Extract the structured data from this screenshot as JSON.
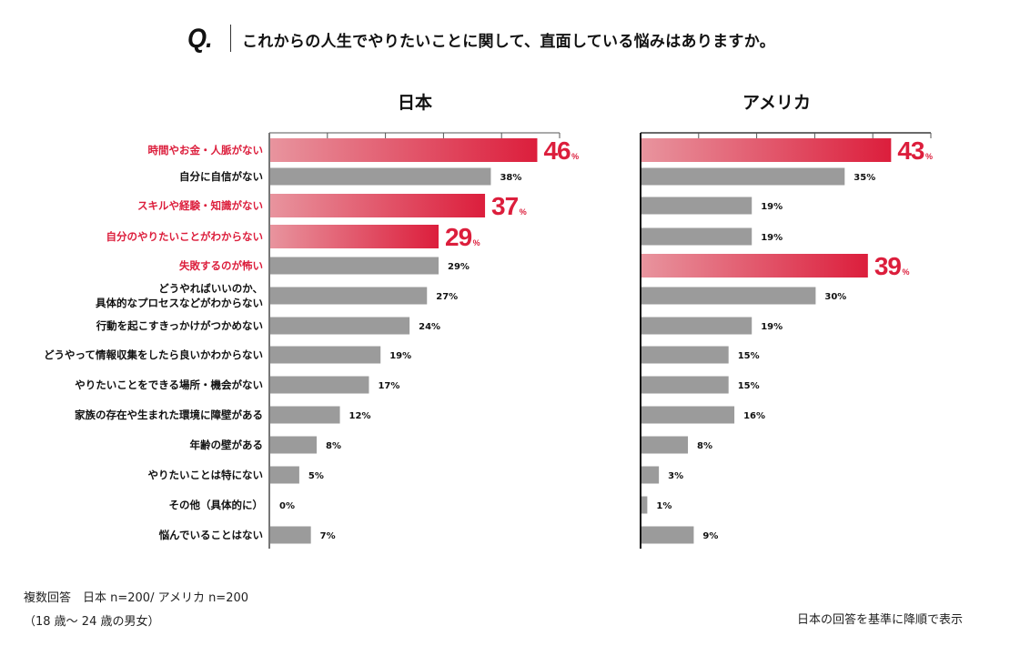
{
  "question": {
    "mark": "Q.",
    "text": "これからの人生でやりたいことに関して、直面している悩みはありますか。"
  },
  "colors": {
    "highlight_start": "#e8949e",
    "highlight_end": "#dc1e3c",
    "highlight_text": "#dc1e3c",
    "bar_gray": "#9b9b9b",
    "japan_axis": "#777777",
    "usa_axis": "#111111"
  },
  "footnotes": {
    "line1": "複数回答　日本 n=200/ アメリカ n=200",
    "line2": "（18 歳〜 24 歳の男女）",
    "sort_note": "日本の回答を基準に降順で表示"
  },
  "chart_data": {
    "type": "bar",
    "orientation": "horizontal",
    "title": "これからの人生でやりたいことに関して、直面している悩みはありますか。",
    "unit": "%",
    "xlim": [
      0,
      50
    ],
    "grid": false,
    "categories": [
      "時間やお金・人脈がない",
      "自分に自信がない",
      "スキルや経験・知識がない",
      "自分のやりたいことがわからない",
      "失敗するのが怖い",
      "どうやればいいのか、\n具体的なプロセスなどがわからない",
      "行動を起こすきっかけがつかめない",
      "どうやって情報収集をしたら良いかわからない",
      "やりたいことをできる場所・機会がない",
      "家族の存在や生まれた環境に障壁がある",
      "年齢の壁がある",
      "やりたいことは特にない",
      "その他（具体的に）",
      "悩んでいることはない"
    ],
    "highlighted_categories_japan": [
      0,
      2,
      3
    ],
    "highlighted_label_categories": [
      0,
      2,
      3,
      4
    ],
    "series": [
      {
        "name": "日本",
        "values": [
          46,
          38,
          37,
          29,
          29,
          27,
          24,
          19,
          17,
          12,
          8,
          5,
          0,
          7
        ],
        "highlight": [
          true,
          false,
          true,
          true,
          false,
          false,
          false,
          false,
          false,
          false,
          false,
          false,
          false,
          false
        ]
      },
      {
        "name": "アメリカ",
        "values": [
          43,
          35,
          19,
          19,
          39,
          30,
          19,
          15,
          15,
          16,
          8,
          3,
          1,
          9
        ],
        "highlight": [
          true,
          false,
          false,
          false,
          true,
          false,
          false,
          false,
          false,
          false,
          false,
          false,
          false,
          false
        ]
      }
    ]
  }
}
